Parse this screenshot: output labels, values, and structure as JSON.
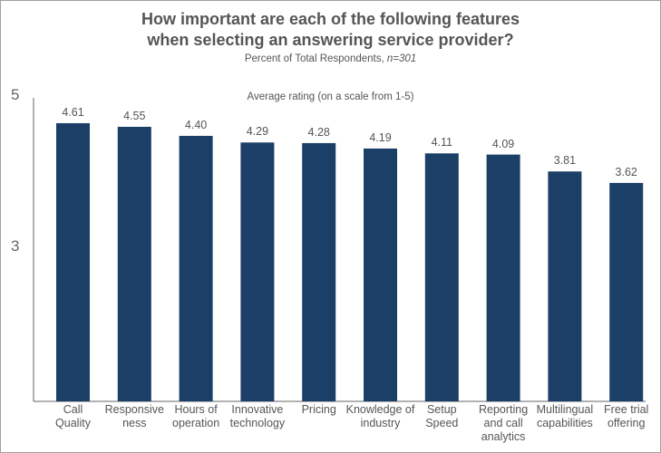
{
  "chart_data": {
    "type": "bar",
    "title": "How important are each of the following features when selecting an answering service provider?",
    "subtitle": "Percent of Total Respondents, ",
    "subtitle_n": "n=301",
    "annotation": "Average rating (on a scale from 1-5)",
    "categories": [
      "Call\nQuality",
      "Responsive\nness",
      "Hours of\noperation",
      "Innovative\ntechnology",
      "Pricing",
      "Knowledge of\nindustry",
      "Setup\nSpeed",
      "Reporting\nand call\nanalytics",
      "Multilingual\ncapabilities",
      "Free trial\noffering"
    ],
    "values": [
      4.61,
      4.55,
      4.4,
      4.29,
      4.28,
      4.19,
      4.11,
      4.09,
      3.81,
      3.62
    ],
    "value_labels": [
      "4.61",
      "4.55",
      "4.40",
      "4.29",
      "4.28",
      "4.19",
      "4.11",
      "4.09",
      "3.81",
      "3.62"
    ],
    "ytick_labels": [
      "5",
      "3"
    ],
    "ylim": [
      0,
      5
    ],
    "grid": false,
    "xlabel": "",
    "ylabel": "",
    "bar_color": "#1b3f66"
  }
}
